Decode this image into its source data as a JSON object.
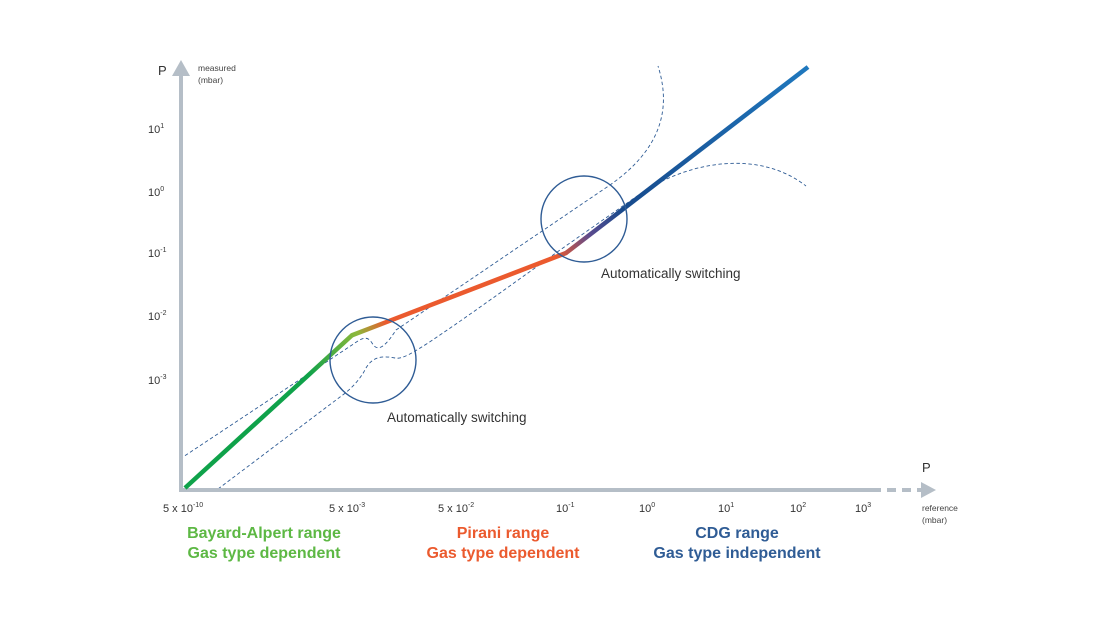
{
  "chart_data": {
    "type": "line",
    "title": "",
    "log_scale": true,
    "y_axis": {
      "symbol": "P",
      "label_line1": "measured",
      "label_line2": "(mbar)",
      "ticks": [
        {
          "base": "10",
          "exp": "1"
        },
        {
          "base": "10",
          "exp": "0"
        },
        {
          "base": "10",
          "exp": "-1"
        },
        {
          "base": "10",
          "exp": "-2"
        },
        {
          "base": "10",
          "exp": "-3"
        }
      ]
    },
    "x_axis": {
      "symbol": "P",
      "label_line1": "reference",
      "label_line2": "(mbar)",
      "ticks": [
        {
          "base": "5 x 10",
          "exp": "-10"
        },
        {
          "base": "5 x 10",
          "exp": "-3"
        },
        {
          "base": "5 x 10",
          "exp": "-2"
        },
        {
          "base": "10",
          "exp": "-1"
        },
        {
          "base": "10",
          "exp": "0"
        },
        {
          "base": "10",
          "exp": "1"
        },
        {
          "base": "10",
          "exp": "2"
        },
        {
          "base": "10",
          "exp": "3"
        }
      ]
    },
    "series": [
      {
        "range": "Bayard-Alpert",
        "color": "#0FA24A",
        "x": [
          "5e-10",
          "5e-3"
        ],
        "y": [
          "5e-10",
          "5e-3"
        ]
      },
      {
        "range": "Pirani",
        "color": "#EB5A2E",
        "x": [
          "5e-3",
          "1e-1"
        ],
        "y": [
          "5e-3",
          "1e-1"
        ]
      },
      {
        "range": "CDG",
        "color": "#1A6BB0",
        "x": [
          "1e-1",
          "1e2"
        ],
        "y": [
          "1e-1",
          "1e2"
        ]
      }
    ],
    "annotations": [
      "Automatically switching",
      "Automatically switching"
    ],
    "ranges": [
      {
        "line1": "Bayard-Alpert range",
        "line2": "Gas type dependent",
        "color": "#5DB844"
      },
      {
        "line1": "Pirani range",
        "line2": "Gas type dependent",
        "color": "#EB5A2E"
      },
      {
        "line1": "CDG range",
        "line2": "Gas type independent",
        "color": "#2F5C95"
      }
    ],
    "colors": {
      "axis": "#B5BEC7",
      "tolerance_band": "#2F5C95",
      "switch_circle": "#2F5C95"
    }
  }
}
